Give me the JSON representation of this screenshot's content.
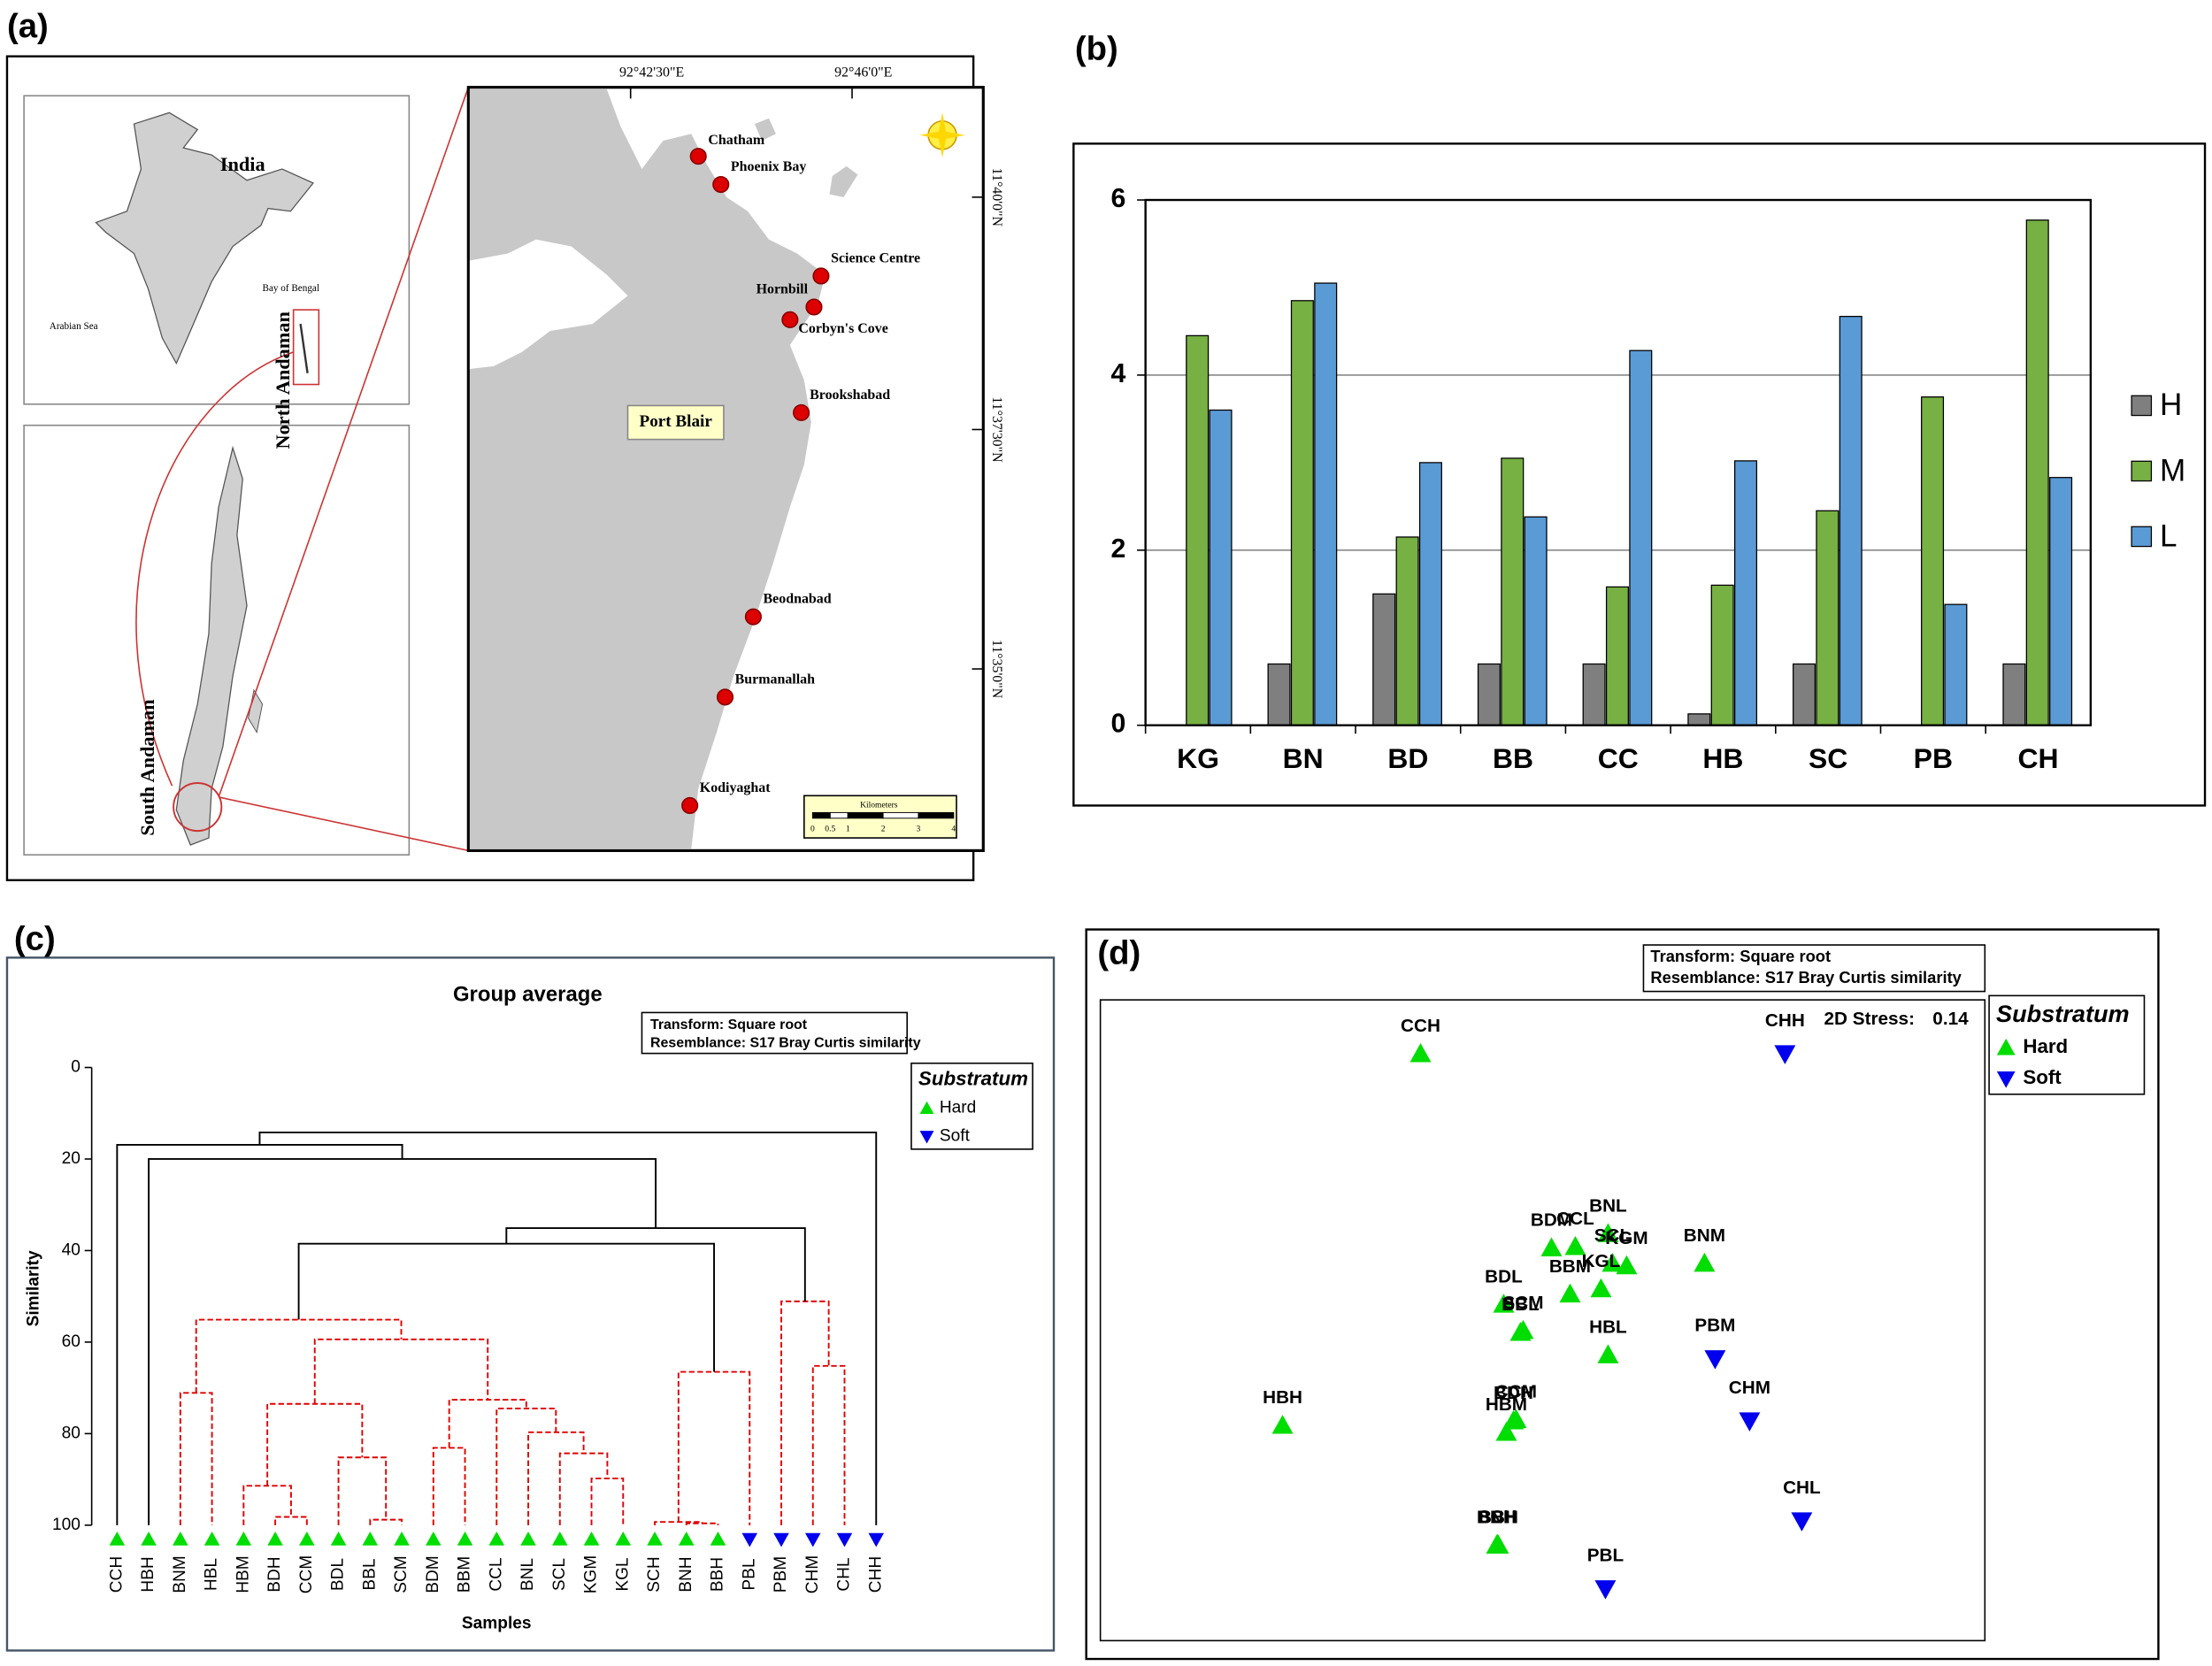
{
  "figure_labels": [
    "(a)",
    "(b)",
    "(c)",
    "(d)"
  ],
  "map": {
    "country": "India",
    "bay": "Bay of Bengal",
    "sea": "Arabian Sea",
    "north": "North Andaman",
    "south": "South Andaman",
    "town": "Port Blair",
    "longitudes": [
      "92°42'30\"E",
      "92°46'0\"E"
    ],
    "latitudes": [
      "11°40'0\"N",
      "11°37'30\"N",
      "11°35'0\"N"
    ],
    "sites": [
      "Chatham",
      "Phoenix Bay",
      "Science Centre",
      "Hornbill",
      "Corbyn's Cove",
      "Brookshabad",
      "Beodnabad",
      "Burmanallah",
      "Kodiyaghat"
    ],
    "scale_title": "Kilometers",
    "scale_ticks": [
      0,
      0.5,
      1,
      2,
      3,
      4
    ]
  },
  "chart_data": [
    {
      "type": "bar",
      "categories": [
        "KG",
        "BN",
        "BD",
        "BB",
        "CC",
        "HB",
        "SC",
        "PB",
        "CH"
      ],
      "series": [
        {
          "name": "H",
          "color": "#7f7f7f",
          "values": [
            0,
            0.7,
            1.5,
            0.7,
            0.7,
            0.13,
            0.7,
            0,
            0.7
          ]
        },
        {
          "name": "M",
          "color": "#77b043",
          "values": [
            4.45,
            4.85,
            2.15,
            3.05,
            1.58,
            1.6,
            2.45,
            3.75,
            5.77
          ]
        },
        {
          "name": "L",
          "color": "#5b9bd5",
          "values": [
            3.6,
            5.05,
            3.0,
            2.38,
            4.28,
            3.02,
            4.67,
            1.38,
            2.83
          ]
        }
      ],
      "ylim": [
        0,
        6
      ],
      "yticks": [
        0,
        2,
        4,
        6
      ],
      "grid": true,
      "legend": "right"
    },
    {
      "type": "dendrogram",
      "title": "Group average",
      "notes": [
        "Transform: Square root",
        "Resemblance: S17 Bray Curtis similarity"
      ],
      "xlabel": "Samples",
      "ylabel": "Similarity",
      "ylim": [
        0,
        100
      ],
      "yticks": [
        0,
        20,
        40,
        60,
        80,
        100
      ],
      "legend_title": "Substratum",
      "series": [
        {
          "name": "Hard",
          "color": "#00dd00",
          "marker": "triangle-up"
        },
        {
          "name": "Soft",
          "color": "#0000ee",
          "marker": "triangle-down"
        }
      ],
      "leaves": [
        "CCH",
        "HBH",
        "BNM",
        "HBL",
        "HBM",
        "BDH",
        "CCM",
        "BDL",
        "BBL",
        "SCM",
        "BDM",
        "BBM",
        "CCL",
        "BNL",
        "SCL",
        "KGM",
        "KGL",
        "SCH",
        "BNH",
        "BBH",
        "PBL",
        "PBM",
        "CHM",
        "CHL",
        "CHH"
      ],
      "leaf_series": [
        0,
        0,
        0,
        0,
        0,
        0,
        0,
        0,
        0,
        0,
        0,
        0,
        0,
        0,
        0,
        0,
        0,
        0,
        0,
        0,
        1,
        1,
        1,
        1,
        1
      ],
      "merges": [
        {
          "left": 5,
          "right": 6,
          "similarity": 98.2,
          "color": "#e00000",
          "dashed": true
        },
        {
          "left": 8,
          "right": 9,
          "similarity": 98.8,
          "color": "#e00000",
          "dashed": true
        },
        {
          "left": 18,
          "right": 19,
          "similarity": 99.6,
          "color": "#e00000",
          "dashed": true
        },
        {
          "left": 17,
          "right": 27,
          "similarity": 99.3,
          "color": "#e00000",
          "dashed": true
        },
        {
          "left": 4,
          "right": 25,
          "similarity": 91.4,
          "color": "#e00000",
          "dashed": true
        },
        {
          "left": 7,
          "right": 26,
          "similarity": 85.2,
          "color": "#e00000",
          "dashed": true
        },
        {
          "left": 10,
          "right": 11,
          "similarity": 83.1,
          "color": "#e00000",
          "dashed": true
        },
        {
          "left": 15,
          "right": 16,
          "similarity": 89.8,
          "color": "#e00000",
          "dashed": true
        },
        {
          "left": 14,
          "right": 32,
          "similarity": 84.3,
          "color": "#e00000",
          "dashed": true
        },
        {
          "left": 13,
          "right": 33,
          "similarity": 79.7,
          "color": "#e00000",
          "dashed": true
        },
        {
          "left": 12,
          "right": 34,
          "similarity": 74.5,
          "color": "#e00000",
          "dashed": true
        },
        {
          "left": 31,
          "right": 35,
          "similarity": 72.6,
          "color": "#e00000",
          "dashed": true
        },
        {
          "left": 29,
          "right": 30,
          "similarity": 73.5,
          "color": "#e00000",
          "dashed": true
        },
        {
          "left": 37,
          "right": 36,
          "similarity": 59.4,
          "color": "#e00000",
          "dashed": true
        },
        {
          "left": 2,
          "right": 3,
          "similarity": 71.1,
          "color": "#e00000",
          "dashed": true
        },
        {
          "left": 39,
          "right": 38,
          "similarity": 55.1,
          "color": "#e00000",
          "dashed": true
        },
        {
          "left": 28,
          "right": 20,
          "similarity": 66.5,
          "color": "#e00000",
          "dashed": true
        },
        {
          "left": 22,
          "right": 23,
          "similarity": 65.2,
          "color": "#e00000",
          "dashed": true
        },
        {
          "left": 21,
          "right": 42,
          "similarity": 51.1,
          "color": "#e00000",
          "dashed": true
        },
        {
          "left": 40,
          "right": 41,
          "similarity": 38.5,
          "color": "#000000",
          "dashed": false
        },
        {
          "left": 44,
          "right": 43,
          "similarity": 35.1,
          "color": "#000000",
          "dashed": false
        },
        {
          "left": 1,
          "right": 45,
          "similarity": 20.0,
          "color": "#000000",
          "dashed": false
        },
        {
          "left": 0,
          "right": 46,
          "similarity": 16.9,
          "color": "#000000",
          "dashed": false
        },
        {
          "left": 47,
          "right": 24,
          "similarity": 14.2,
          "color": "#000000",
          "dashed": false
        }
      ]
    },
    {
      "type": "scatter",
      "notes": [
        "Transform: Square root",
        "Resemblance: S17 Bray Curtis similarity"
      ],
      "stress_label": "2D Stress:",
      "stress": 0.14,
      "legend_title": "Substratum",
      "series": [
        {
          "name": "Hard",
          "color": "#00dd00",
          "marker": "triangle-up",
          "labels": [
            "CCH",
            "BDM",
            "CCL",
            "BNL",
            "SCL",
            "KGM",
            "KGL",
            "BNM",
            "BBM",
            "BDL",
            "SCM",
            "BBL",
            "HBL",
            "HBH",
            "BDH",
            "CCM",
            "HBM",
            "BNH",
            "SCH",
            "BBH"
          ],
          "x": [
            0.362,
            0.51,
            0.537,
            0.574,
            0.579,
            0.595,
            0.566,
            0.683,
            0.531,
            0.456,
            0.478,
            0.475,
            0.574,
            0.206,
            0.467,
            0.47,
            0.459,
            0.448,
            0.449,
            0.45
          ],
          "y": [
            0.916,
            0.613,
            0.615,
            0.635,
            0.589,
            0.585,
            0.549,
            0.589,
            0.541,
            0.525,
            0.484,
            0.481,
            0.446,
            0.336,
            0.343,
            0.345,
            0.325,
            0.149,
            0.15,
            0.149
          ]
        },
        {
          "name": "Soft",
          "color": "#0000ee",
          "marker": "triangle-down",
          "labels": [
            "CHH",
            "PBM",
            "CHM",
            "CHL",
            "PBL"
          ],
          "x": [
            0.774,
            0.695,
            0.734,
            0.793,
            0.571
          ],
          "y": [
            0.916,
            0.44,
            0.343,
            0.187,
            0.081
          ]
        }
      ]
    }
  ]
}
